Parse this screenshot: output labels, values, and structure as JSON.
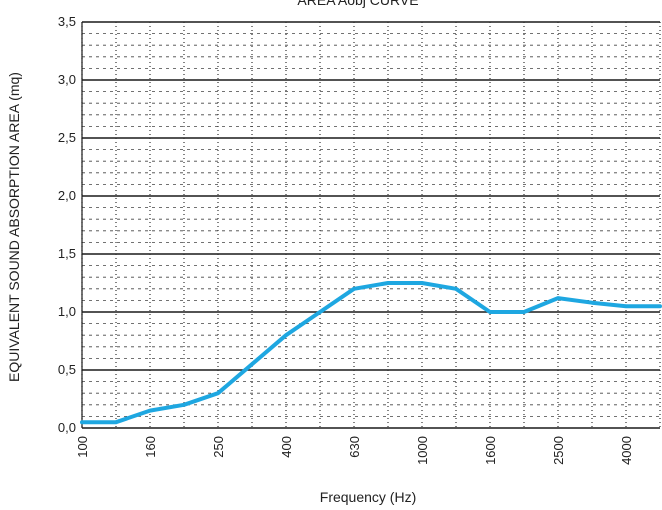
{
  "chart_data": {
    "type": "line",
    "title": "AREA Aobj  CURVE",
    "xlabel": "Frequency (Hz)",
    "ylabel": "EQUIVALENT SOUND ABSORPTION AREA (mq)",
    "x_scale": "log (third-octave bands)",
    "x_bands": [
      "100",
      "125",
      "160",
      "200",
      "250",
      "315",
      "400",
      "500",
      "630",
      "800",
      "1000",
      "1250",
      "1600",
      "2000",
      "2500",
      "3150",
      "4000",
      "5000"
    ],
    "x_tick_labels": [
      "100",
      "160",
      "250",
      "400",
      "630",
      "1000",
      "1600",
      "2500",
      "4000"
    ],
    "y_tick_labels": [
      "0,0",
      "0,5",
      "1,0",
      "1,5",
      "2,0",
      "2,5",
      "3,0",
      "3,5"
    ],
    "ylim": [
      0,
      3.5
    ],
    "grid": true,
    "line_color": "#1ea7e1",
    "series": [
      {
        "values": [
          0.05,
          0.05,
          0.15,
          0.2,
          0.3,
          0.55,
          0.8,
          1.0,
          1.2,
          1.25,
          1.25,
          1.2,
          1.0,
          1.0,
          1.12,
          1.08,
          1.05,
          1.05
        ]
      }
    ]
  }
}
